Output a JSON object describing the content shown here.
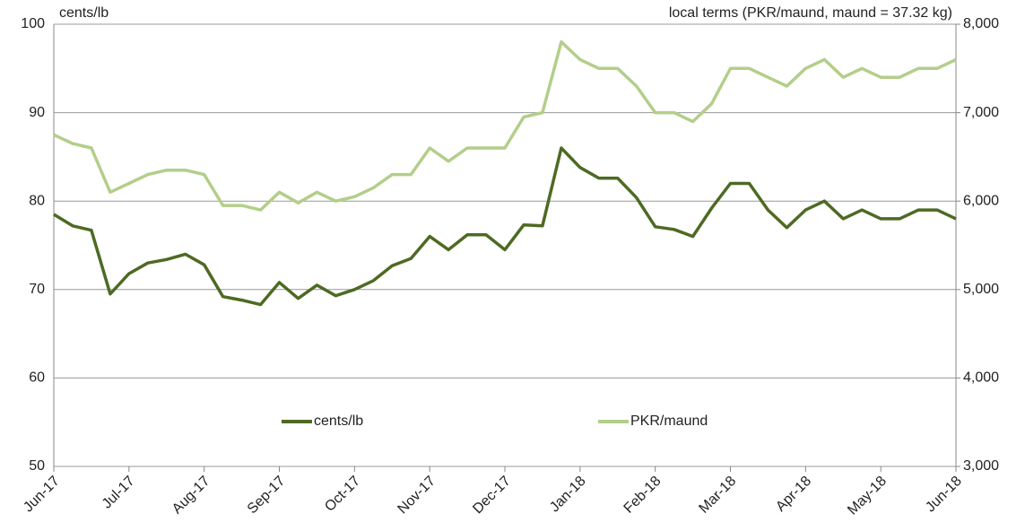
{
  "chart_data": {
    "type": "line",
    "y_label": "cents/lb",
    "y2_label": "local terms (PKR/maund, maund = 37.32 kg)",
    "categories": [
      "Jun-17",
      null,
      null,
      null,
      "Jul-17",
      null,
      null,
      null,
      "Aug-17",
      null,
      null,
      null,
      "Sep-17",
      null,
      null,
      null,
      "Oct-17",
      null,
      null,
      null,
      "Nov-17",
      null,
      null,
      null,
      "Dec-17",
      null,
      null,
      null,
      "Jan-18",
      null,
      null,
      null,
      "Feb-18",
      null,
      null,
      null,
      "Mar-18",
      null,
      null,
      null,
      "Apr-18",
      null,
      null,
      null,
      "May-18",
      null,
      null,
      null,
      "Jun-18"
    ],
    "series": [
      {
        "name": "cents/lb",
        "color": "#4e6a23",
        "values": [
          78.5,
          77.2,
          76.7,
          69.5,
          71.8,
          73.0,
          73.4,
          74.0,
          72.8,
          69.2,
          68.8,
          68.3,
          70.8,
          69.0,
          70.5,
          69.3,
          70.0,
          71.0,
          72.7,
          73.5,
          76.0,
          74.5,
          76.2,
          76.2,
          74.5,
          77.3,
          77.2,
          86.0,
          83.8,
          82.6,
          82.6,
          80.4,
          77.1,
          76.8,
          76.0,
          79.2,
          82.0,
          82.0,
          79.0,
          77.0,
          79.0,
          80.0,
          78.0,
          79.0,
          78.0,
          78.0,
          79.0,
          79.0,
          78.0
        ]
      },
      {
        "name": "PKR/maund",
        "color": "#b3ce8a",
        "axis": "y2",
        "values": [
          6750,
          6650,
          6600,
          6100,
          6200,
          6300,
          6350,
          6350,
          6300,
          5950,
          5950,
          5900,
          6100,
          5980,
          6100,
          6000,
          6050,
          6150,
          6300,
          6300,
          6600,
          6450,
          6600,
          6600,
          6600,
          6950,
          7000,
          7800,
          7600,
          7500,
          7500,
          7300,
          7000,
          7000,
          6900,
          7100,
          7500,
          7500,
          7400,
          7300,
          7500,
          7600,
          7400,
          7500,
          7400,
          7400,
          7500,
          7500,
          7600
        ]
      }
    ],
    "ylim": [
      50,
      100
    ],
    "yticks": [
      50,
      60,
      70,
      80,
      90,
      100
    ],
    "y2lim": [
      3000,
      8000
    ],
    "y2ticks": [
      {
        "value": 3000,
        "label": "3,000"
      },
      {
        "value": 4000,
        "label": "4,000"
      },
      {
        "value": 5000,
        "label": "5,000"
      },
      {
        "value": 6000,
        "label": "6,000"
      },
      {
        "value": 7000,
        "label": "7,000"
      },
      {
        "value": 8000,
        "label": "8,000"
      }
    ],
    "grid": true,
    "legend": "center"
  }
}
